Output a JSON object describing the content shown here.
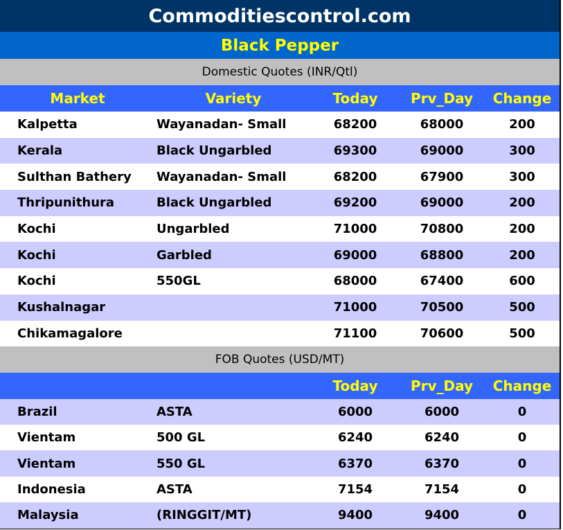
{
  "title": "Commoditiescontrol.com",
  "subtitle": "Black Pepper",
  "colors": {
    "title_bg": "#003366",
    "subtitle_bg": "#0066cc",
    "header_bg": "#3366ff",
    "header_text": "#ffff00",
    "alt_row": "#ccccff",
    "section_bg": "#c0c0c0"
  },
  "domestic": {
    "section": "Domestic Quotes (INR/Qtl)",
    "headers": [
      "Market",
      "Variety",
      "Today",
      "Prv_Day",
      "Change"
    ],
    "rows": [
      [
        "Kalpetta",
        "Wayanadan- Small",
        "68200",
        "68000",
        "200"
      ],
      [
        "Kerala",
        "Black Ungarbled",
        "69300",
        "69000",
        "300"
      ],
      [
        "Sulthan Bathery",
        "Wayanadan- Small",
        "68200",
        "67900",
        "300"
      ],
      [
        "Thripunithura",
        "Black Ungarbled",
        "69200",
        "69000",
        "200"
      ],
      [
        "Kochi",
        "Ungarbled",
        "71000",
        "70800",
        "200"
      ],
      [
        "Kochi",
        "Garbled",
        "69000",
        "68800",
        "200"
      ],
      [
        "Kochi",
        "550GL",
        "68000",
        "67400",
        "600"
      ],
      [
        "Kushalnagar",
        "",
        "71000",
        "70500",
        "500"
      ],
      [
        "Chikamagalore",
        "",
        "71100",
        "70600",
        "500"
      ]
    ]
  },
  "fob": {
    "section": "FOB Quotes (USD/MT)",
    "headers": [
      "",
      "",
      "Today",
      "Prv_Day",
      "Change"
    ],
    "rows": [
      [
        "Brazil",
        "ASTA",
        "6000",
        "6000",
        "0"
      ],
      [
        "Vientam",
        "500 GL",
        "6240",
        "6240",
        "0"
      ],
      [
        "Vientam",
        "550 GL",
        "6370",
        "6370",
        "0"
      ],
      [
        "Indonesia",
        "ASTA",
        "7154",
        "7154",
        "0"
      ],
      [
        "Malaysia",
        "(RINGGIT/MT)",
        "9400",
        "9400",
        "0"
      ]
    ]
  }
}
